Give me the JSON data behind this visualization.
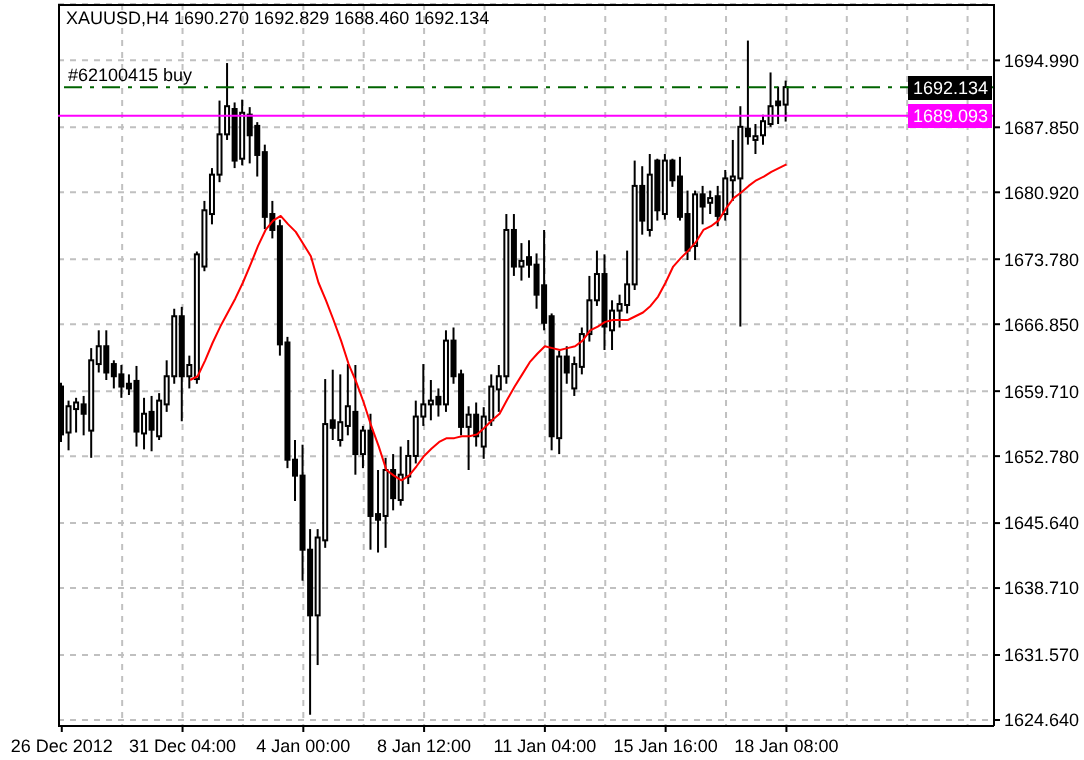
{
  "chart_data": {
    "type": "candlestick",
    "title": "XAUUSD,H4 1690.270 1692.829 1688.460 1692.134",
    "color": "#000000",
    "categories": [
      "26 Dec 2012",
      null,
      null,
      null,
      null,
      null,
      null,
      null,
      null,
      null,
      null,
      null,
      null,
      null,
      null,
      null,
      "31 Dec 04:00",
      null,
      null,
      null,
      null,
      null,
      null,
      null,
      null,
      null,
      null,
      null,
      null,
      null,
      null,
      null,
      "4 Jan 00:00",
      null,
      null,
      null,
      null,
      null,
      null,
      null,
      null,
      null,
      null,
      null,
      null,
      null,
      null,
      null,
      "8 Jan 12:00",
      null,
      null,
      null,
      null,
      null,
      null,
      null,
      null,
      null,
      null,
      null,
      null,
      null,
      null,
      null,
      "11 Jan 04:00",
      null,
      null,
      null,
      null,
      null,
      null,
      null,
      null,
      null,
      null,
      null,
      null,
      null,
      null,
      null,
      "15 Jan 16:00",
      null,
      null,
      null,
      null,
      null,
      null,
      null,
      null,
      null,
      null,
      null,
      null,
      null,
      null,
      null,
      "18 Jan 08:00",
      null,
      null,
      null,
      null,
      null,
      null,
      null,
      null,
      null,
      null,
      null,
      null,
      null,
      null,
      null,
      null,
      null,
      null,
      null,
      null,
      null,
      null,
      null,
      null,
      null,
      null,
      null
    ],
    "ohlc": [
      [
        1660.2,
        1660.6,
        1654.3,
        1655.1
      ],
      [
        1655.3,
        1658.7,
        1653.4,
        1658.1
      ],
      [
        1657.8,
        1659.0,
        1655.3,
        1658.5
      ],
      [
        1658.3,
        1659.2,
        1655.0,
        1657.3
      ],
      [
        1655.5,
        1664.3,
        1652.6,
        1663.0
      ],
      [
        1662.6,
        1666.2,
        1661.7,
        1664.5
      ],
      [
        1664.5,
        1666.2,
        1660.9,
        1661.7
      ],
      [
        1662.6,
        1663.0,
        1660.0,
        1661.3
      ],
      [
        1661.5,
        1662.5,
        1659.0,
        1660.2
      ],
      [
        1660.5,
        1661.5,
        1659.3,
        1660.0
      ],
      [
        1660.8,
        1662.4,
        1653.8,
        1655.4
      ],
      [
        1655.2,
        1659.0,
        1653.5,
        1657.3
      ],
      [
        1657.5,
        1659.2,
        1653.3,
        1655.6
      ],
      [
        1654.9,
        1659.5,
        1654.5,
        1658.7
      ],
      [
        1658.3,
        1663.0,
        1657.5,
        1661.3
      ],
      [
        1661.3,
        1668.5,
        1660.5,
        1667.7
      ],
      [
        1667.7,
        1668.7,
        1656.5,
        1661.3
      ],
      [
        1661.3,
        1663.5,
        1660.0,
        1662.5
      ],
      [
        1661.0,
        1674.6,
        1660.5,
        1674.3
      ],
      [
        1673.0,
        1680.0,
        1672.5,
        1679.0
      ],
      [
        1678.6,
        1683.5,
        1677.5,
        1682.8
      ],
      [
        1682.8,
        1690.7,
        1682.0,
        1687.1
      ],
      [
        1687.1,
        1694.7,
        1686.5,
        1690.1
      ],
      [
        1689.8,
        1690.5,
        1683.5,
        1684.3
      ],
      [
        1684.5,
        1690.8,
        1683.8,
        1689.4
      ],
      [
        1689.2,
        1690.0,
        1684.0,
        1687.0
      ],
      [
        1688.0,
        1688.4,
        1682.6,
        1684.9
      ],
      [
        1685.2,
        1686.0,
        1677.0,
        1678.3
      ],
      [
        1678.6,
        1680.0,
        1676.0,
        1676.9
      ],
      [
        1677.3,
        1678.0,
        1663.5,
        1664.7
      ],
      [
        1664.9,
        1665.5,
        1651.5,
        1652.4
      ],
      [
        1652.4,
        1654.5,
        1648.0,
        1650.7
      ],
      [
        1650.7,
        1654.0,
        1639.5,
        1642.8
      ],
      [
        1642.8,
        1645.0,
        1625.2,
        1635.8
      ],
      [
        1635.8,
        1645.0,
        1630.5,
        1644.1
      ],
      [
        1643.8,
        1661.0,
        1643.0,
        1656.2
      ],
      [
        1656.6,
        1662.0,
        1654.5,
        1655.8
      ],
      [
        1654.5,
        1661.5,
        1653.8,
        1656.4
      ],
      [
        1656.0,
        1662.6,
        1655.0,
        1658.1
      ],
      [
        1657.5,
        1662.5,
        1650.8,
        1653.0
      ],
      [
        1653.0,
        1656.0,
        1651.5,
        1655.5
      ],
      [
        1655.5,
        1657.3,
        1642.8,
        1646.4
      ],
      [
        1646.6,
        1651.3,
        1642.5,
        1646.0
      ],
      [
        1646.4,
        1652.6,
        1643.0,
        1651.3
      ],
      [
        1651.3,
        1653.0,
        1647.0,
        1648.3
      ],
      [
        1648.1,
        1653.8,
        1647.5,
        1650.8
      ],
      [
        1650.6,
        1654.5,
        1649.8,
        1652.8
      ],
      [
        1652.8,
        1658.7,
        1652.0,
        1657.0
      ],
      [
        1657.0,
        1662.6,
        1656.0,
        1658.3
      ],
      [
        1658.3,
        1660.9,
        1656.6,
        1658.7
      ],
      [
        1659.1,
        1660.0,
        1657.0,
        1658.3
      ],
      [
        1658.3,
        1666.2,
        1657.5,
        1665.1
      ],
      [
        1665.1,
        1666.5,
        1660.5,
        1661.3
      ],
      [
        1661.5,
        1662.0,
        1655.0,
        1655.9
      ],
      [
        1655.9,
        1658.1,
        1651.3,
        1657.2
      ],
      [
        1657.2,
        1658.5,
        1653.8,
        1654.9
      ],
      [
        1653.8,
        1658.0,
        1652.5,
        1657.0
      ],
      [
        1656.6,
        1661.5,
        1656.0,
        1660.2
      ],
      [
        1659.9,
        1662.5,
        1657.5,
        1661.3
      ],
      [
        1661.3,
        1678.6,
        1660.5,
        1676.9
      ],
      [
        1676.9,
        1678.6,
        1672.0,
        1673.0
      ],
      [
        1673.0,
        1675.5,
        1671.5,
        1673.6
      ],
      [
        1674.0,
        1675.8,
        1671.8,
        1673.2
      ],
      [
        1673.2,
        1674.4,
        1668.5,
        1670.0
      ],
      [
        1671.0,
        1676.9,
        1666.2,
        1667.0
      ],
      [
        1667.7,
        1668.0,
        1653.4,
        1654.9
      ],
      [
        1654.7,
        1664.0,
        1653.0,
        1663.4
      ],
      [
        1663.4,
        1664.5,
        1660.5,
        1661.7
      ],
      [
        1660.0,
        1663.4,
        1659.2,
        1662.6
      ],
      [
        1662.3,
        1666.5,
        1661.5,
        1665.8
      ],
      [
        1665.8,
        1672.0,
        1665.0,
        1669.4
      ],
      [
        1669.4,
        1674.7,
        1668.8,
        1672.2
      ],
      [
        1672.2,
        1674.3,
        1664.1,
        1666.6
      ],
      [
        1666.2,
        1669.4,
        1664.1,
        1668.3
      ],
      [
        1668.3,
        1670.0,
        1666.5,
        1669.0
      ],
      [
        1668.9,
        1674.7,
        1668.0,
        1671.1
      ],
      [
        1671.1,
        1684.3,
        1670.5,
        1681.6
      ],
      [
        1681.6,
        1683.7,
        1676.4,
        1677.9
      ],
      [
        1676.9,
        1685.0,
        1676.2,
        1682.8
      ],
      [
        1684.3,
        1684.5,
        1677.9,
        1679.0
      ],
      [
        1678.6,
        1685.0,
        1678.0,
        1684.3
      ],
      [
        1684.3,
        1684.5,
        1681.5,
        1682.2
      ],
      [
        1682.6,
        1684.7,
        1677.9,
        1678.3
      ],
      [
        1678.6,
        1681.1,
        1673.7,
        1674.7
      ],
      [
        1675.2,
        1681.1,
        1673.7,
        1680.7
      ],
      [
        1680.7,
        1681.6,
        1677.5,
        1679.4
      ],
      [
        1679.8,
        1681.1,
        1678.6,
        1680.3
      ],
      [
        1680.5,
        1681.6,
        1677.3,
        1678.4
      ],
      [
        1678.6,
        1683.3,
        1677.9,
        1682.4
      ],
      [
        1682.2,
        1686.5,
        1680.0,
        1682.6
      ],
      [
        1682.4,
        1690.1,
        1666.6,
        1687.9
      ],
      [
        1687.7,
        1697.1,
        1686.0,
        1686.9
      ],
      [
        1686.5,
        1688.2,
        1685.0,
        1686.9
      ],
      [
        1687.0,
        1689.2,
        1686.0,
        1688.5
      ],
      [
        1688.2,
        1693.7,
        1687.9,
        1690.1
      ],
      [
        1690.6,
        1692.2,
        1688.2,
        1690.2
      ],
      [
        1690.27,
        1692.829,
        1688.46,
        1692.134
      ],
      null,
      null,
      null,
      null,
      null,
      null,
      null,
      null,
      null,
      null,
      null,
      null,
      null,
      null,
      null,
      null,
      null,
      null,
      null,
      null,
      null,
      null,
      null,
      null,
      null,
      null,
      null
    ],
    "series": [
      {
        "type": "line",
        "color": "#ff0000",
        "values": [
          null,
          null,
          null,
          null,
          null,
          null,
          null,
          null,
          null,
          null,
          null,
          null,
          null,
          null,
          null,
          null,
          null,
          1660.9,
          1661.3,
          1663.0,
          1664.9,
          1666.6,
          1668.1,
          1669.6,
          1671.3,
          1673.2,
          1675.2,
          1676.9,
          1677.9,
          1678.4,
          1677.5,
          1676.7,
          1675.4,
          1674.1,
          1671.3,
          1669.4,
          1667.3,
          1665.1,
          1662.6,
          1660.7,
          1658.5,
          1656.0,
          1653.8,
          1651.3,
          1650.7,
          1650.2,
          1650.7,
          1651.7,
          1652.8,
          1653.6,
          1654.3,
          1654.7,
          1654.7,
          1654.9,
          1654.9,
          1655.1,
          1655.8,
          1656.6,
          1657.3,
          1658.8,
          1660.2,
          1661.5,
          1662.8,
          1663.7,
          1664.5,
          1664.3,
          1664.1,
          1664.3,
          1664.5,
          1665.1,
          1666.2,
          1666.6,
          1667.1,
          1667.3,
          1667.3,
          1667.3,
          1667.7,
          1668.1,
          1668.8,
          1669.8,
          1671.3,
          1673.0,
          1673.9,
          1674.7,
          1675.6,
          1676.9,
          1677.3,
          1677.9,
          1679.2,
          1680.3,
          1680.9,
          1681.6,
          1682.2,
          1682.6,
          1683.1,
          1683.5,
          1683.9,
          null,
          null,
          null,
          null,
          null,
          null,
          null,
          null,
          null,
          null,
          null,
          null,
          null,
          null,
          null,
          null,
          null,
          null,
          null,
          null,
          null,
          null,
          null,
          null,
          null,
          null,
          null
        ]
      }
    ],
    "ylim": [
      1624.0,
      1701.0
    ],
    "yticks": [
      {
        "value": 1624.64,
        "label": "1624.640"
      },
      {
        "value": 1631.57,
        "label": "1631.570"
      },
      {
        "value": 1638.71,
        "label": "1638.710"
      },
      {
        "value": 1645.64,
        "label": "1645.640"
      },
      {
        "value": 1652.78,
        "label": "1652.780"
      },
      {
        "value": 1659.71,
        "label": "1659.710"
      },
      {
        "value": 1666.85,
        "label": "1666.850"
      },
      {
        "value": 1673.78,
        "label": "1673.780"
      },
      {
        "value": 1680.92,
        "label": "1680.920"
      },
      {
        "value": 1687.85,
        "label": "1687.850"
      },
      {
        "value": 1694.99,
        "label": "1694.990"
      }
    ],
    "grid": true,
    "ref_lines": [
      {
        "axis": "y",
        "value": 1692.134,
        "label": "#62100415 buy",
        "color": "#006400",
        "line_style": "dashed"
      },
      {
        "axis": "y",
        "value": 1689.093,
        "color": "#ff00ff"
      }
    ],
    "annotations": [
      {
        "text": "1692.134",
        "y": 1692.134
      },
      {
        "text": "1689.093",
        "y": 1689.093
      }
    ]
  }
}
